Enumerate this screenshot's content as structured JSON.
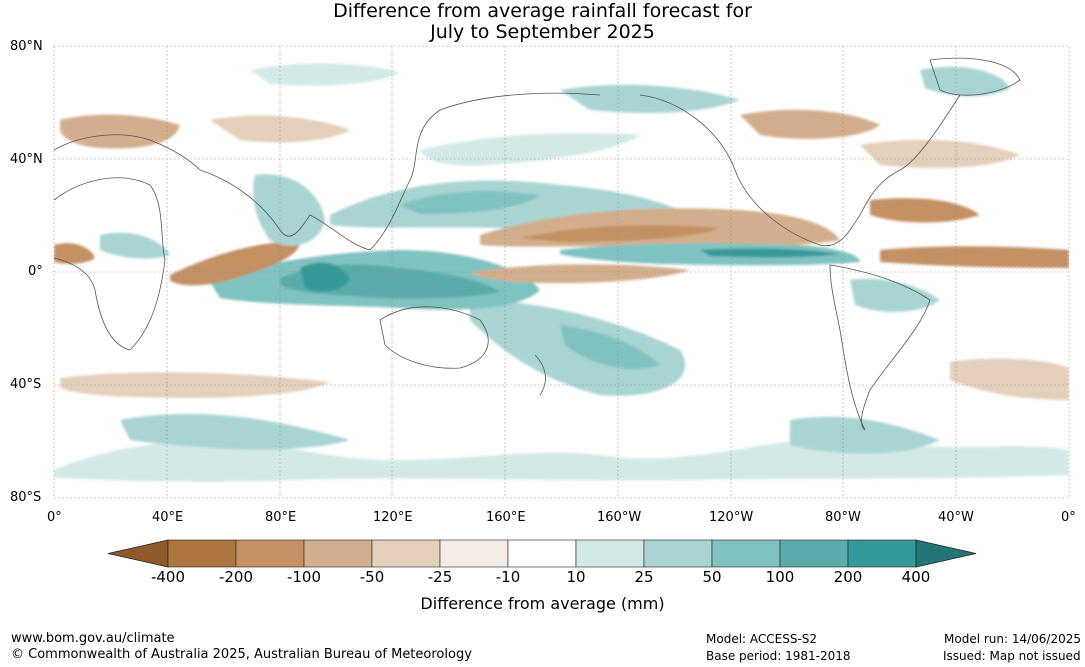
{
  "title_line1": "Difference from average rainfall forecast for",
  "title_line2": "July to September 2025",
  "lat_labels": [
    "80°N",
    "40°N",
    "0°",
    "40°S",
    "80°S"
  ],
  "lon_labels": [
    "0°",
    "40°E",
    "80°E",
    "120°E",
    "160°E",
    "160°W",
    "120°W",
    "80°W",
    "40°W",
    "0°"
  ],
  "legend": {
    "title": "Difference from average (mm)",
    "ticks": [
      "-400",
      "-200",
      "-100",
      "-50",
      "-25",
      "-10",
      "10",
      "25",
      "50",
      "100",
      "200",
      "400"
    ],
    "colors": [
      "#8f5a2a",
      "#ae7540",
      "#c39164",
      "#d3ae8c",
      "#e4cfba",
      "#f2ebe6",
      "#ffffff",
      "#d3e9e8",
      "#a8d4d3",
      "#80c2c1",
      "#5aacab",
      "#34999a",
      "#237578"
    ]
  },
  "footer": {
    "url": "www.bom.gov.au/climate",
    "copyright": "© Commonwealth of Australia 2025, Australian Bureau of Meteorology",
    "model": "Model: ACCESS-S2",
    "base_period": "Base period: 1981-2018",
    "model_run": "Model run: 14/06/2025",
    "issued": "Issued: Map not issued"
  }
}
